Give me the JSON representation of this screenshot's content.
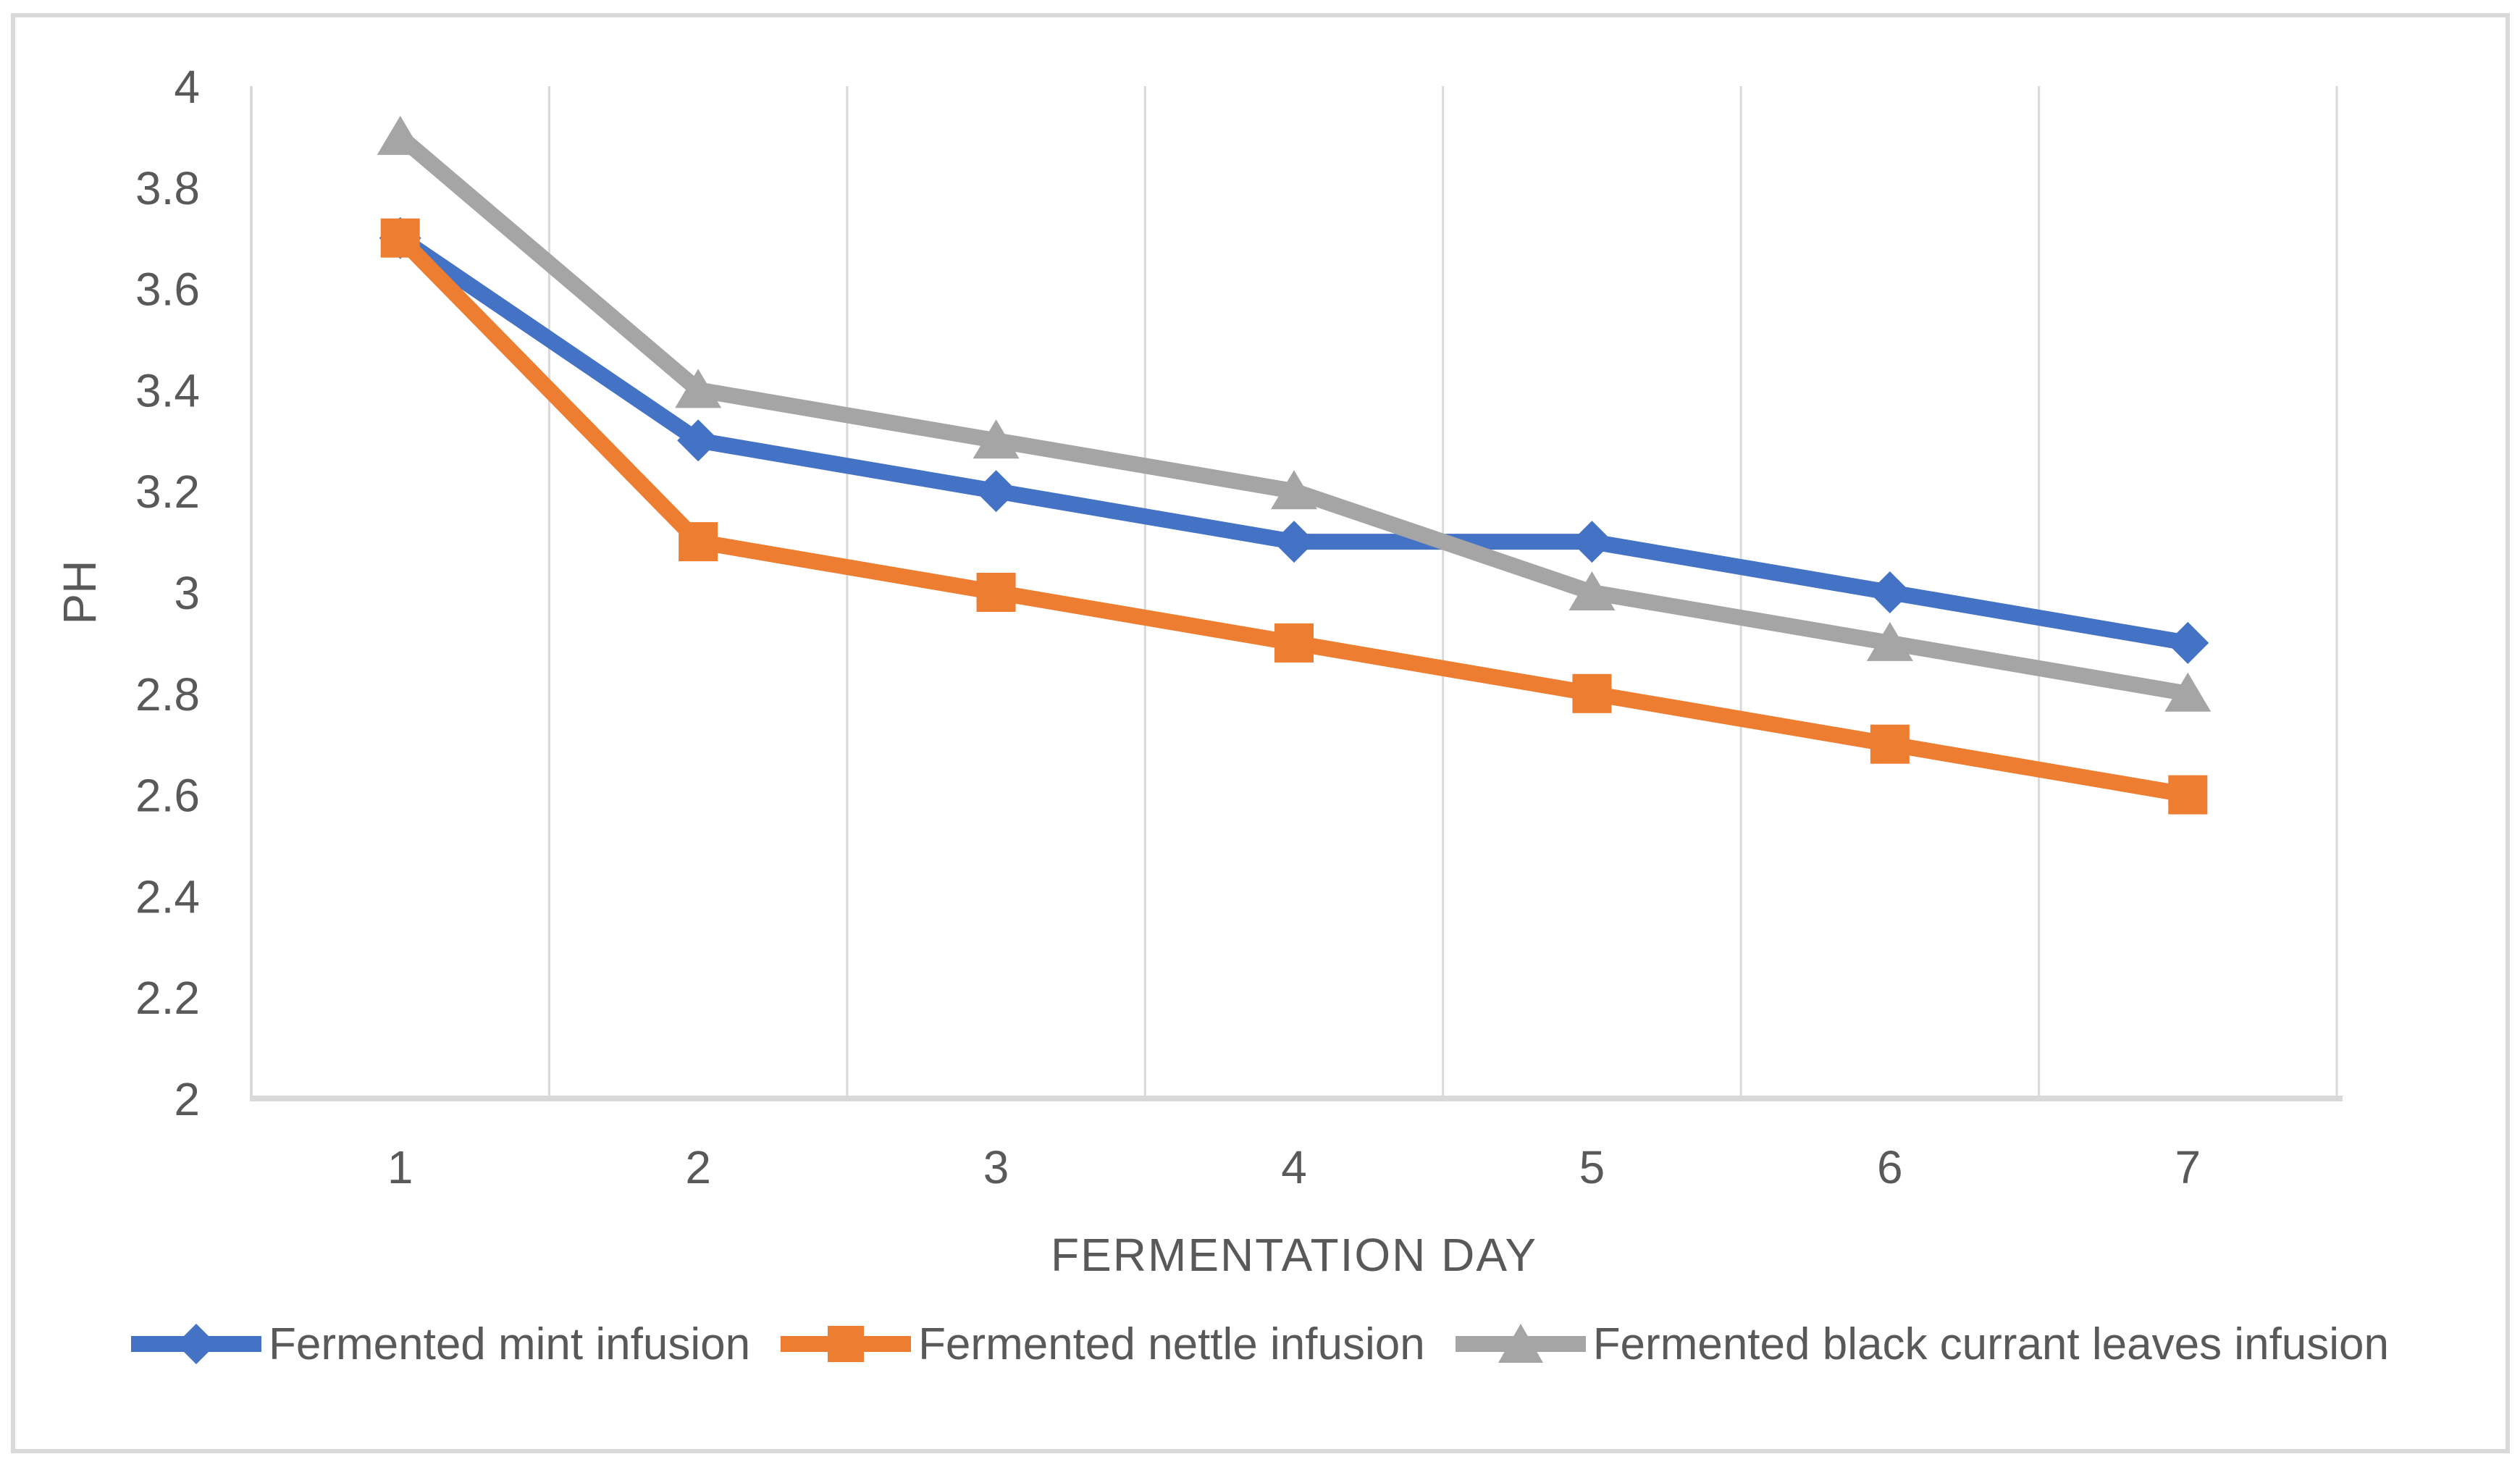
{
  "figure": {
    "background": "#FFFFFF",
    "border_color": "#D9D9D9"
  },
  "chart_data": {
    "type": "line",
    "title": "",
    "xlabel": "FERMENTATION DAY",
    "ylabel": "PH",
    "categories": [
      "1",
      "2",
      "3",
      "4",
      "5",
      "6",
      "7"
    ],
    "ylim": [
      2,
      4
    ],
    "yticks": [
      "4",
      "3.8",
      "3.6",
      "3.4",
      "3.2",
      "3",
      "2.8",
      "2.6",
      "2.4",
      "2.2",
      "2"
    ],
    "grid": "vertical-only",
    "legend_position": "bottom",
    "series": [
      {
        "name": "Fermented mint infusion",
        "marker": "diamond",
        "color": "#4472C4",
        "values": [
          3.7,
          3.3,
          3.2,
          3.1,
          3.1,
          3.0,
          2.9
        ]
      },
      {
        "name": "Fermented nettle infusion",
        "marker": "square",
        "color": "#ED7D31",
        "values": [
          3.7,
          3.1,
          3.0,
          2.9,
          2.8,
          2.7,
          2.6
        ]
      },
      {
        "name": "Fermented black currant leaves infusion",
        "marker": "triangle",
        "color": "#A5A5A5",
        "values": [
          3.9,
          3.4,
          3.3,
          3.2,
          3.0,
          2.9,
          2.8
        ]
      }
    ],
    "colors": {
      "text": "#595959",
      "gridline": "#D9D9D9",
      "axis": "#D9D9D9"
    }
  }
}
